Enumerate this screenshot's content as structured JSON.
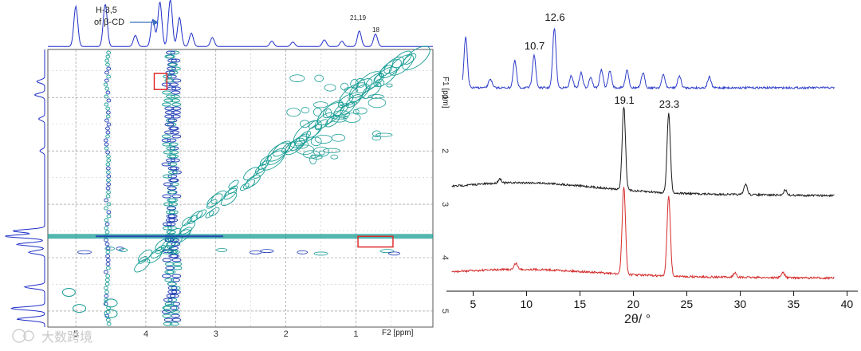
{
  "chart_data": [
    {
      "type": "heatmap",
      "panel": "2D ROESY NMR",
      "f2_label": "F2 [ppm]",
      "f1_label": "F1 [ppm]",
      "f2_ticks": [
        5,
        4,
        3,
        2,
        1
      ],
      "f1_ticks": [
        1,
        2,
        3,
        4,
        5
      ],
      "xlim": [
        5.4,
        -0.1
      ],
      "ylim": [
        0.1,
        5.3
      ],
      "annotations": {
        "arrow_label_line1": "H-3,5",
        "arrow_label_line2": "of β-CD",
        "peak_21_19": "21,19",
        "peak_18": "18"
      },
      "highlight_boxes": [
        {
          "x_ppm": [
            3.7,
            3.88
          ],
          "y_ppm": [
            0.55,
            0.85
          ]
        },
        {
          "x_ppm": [
            0.47,
            0.97
          ],
          "y_ppm": [
            3.6,
            3.8
          ]
        }
      ],
      "diagonal_ppm": [
        0.2,
        4.1
      ],
      "vertical_bands_ppm": [
        4.55,
        3.6,
        3.66
      ],
      "horizontal_band_ppm": 3.6,
      "colors": {
        "contour_teal": "#1a9e96",
        "contour_blue": "#1f3db5",
        "projection": "#1f2fc8",
        "box": "#e02020"
      }
    },
    {
      "type": "line",
      "panel": "XRD",
      "xlabel": "2θ/ °",
      "xlim": [
        2.5,
        41
      ],
      "xticks": [
        5,
        10,
        15,
        20,
        25,
        30,
        35,
        40
      ],
      "series": [
        {
          "color": "#2f3ec9",
          "peaks": [
            {
              "x": 4.3,
              "h": 0.85
            },
            {
              "x": 6.6,
              "h": 0.15
            },
            {
              "x": 8.9,
              "h": 0.45
            },
            {
              "x": 10.7,
              "h": 0.55
            },
            {
              "x": 12.6,
              "h": 1.0
            },
            {
              "x": 14.2,
              "h": 0.2
            },
            {
              "x": 15.1,
              "h": 0.25
            },
            {
              "x": 16.0,
              "h": 0.18
            },
            {
              "x": 17.0,
              "h": 0.3
            },
            {
              "x": 17.8,
              "h": 0.28
            },
            {
              "x": 19.4,
              "h": 0.3
            },
            {
              "x": 20.9,
              "h": 0.25
            },
            {
              "x": 22.8,
              "h": 0.22
            },
            {
              "x": 24.3,
              "h": 0.2
            },
            {
              "x": 27.1,
              "h": 0.18
            }
          ]
        },
        {
          "color": "#1a1a1a",
          "peaks": [
            {
              "x": 7.5,
              "h": 0.05
            },
            {
              "x": 19.1,
              "h": 0.95
            },
            {
              "x": 23.3,
              "h": 0.9
            },
            {
              "x": 30.5,
              "h": 0.12
            },
            {
              "x": 34.2,
              "h": 0.06
            }
          ]
        },
        {
          "color": "#d42a2a",
          "peaks": [
            {
              "x": 9.0,
              "h": 0.07
            },
            {
              "x": 19.1,
              "h": 1.0
            },
            {
              "x": 23.3,
              "h": 0.92
            },
            {
              "x": 29.5,
              "h": 0.05
            },
            {
              "x": 34.0,
              "h": 0.06
            }
          ]
        }
      ],
      "peak_labels": [
        "12.6",
        "10.7",
        "19.1",
        "23.3"
      ]
    }
  ],
  "watermark": "大数跨境"
}
